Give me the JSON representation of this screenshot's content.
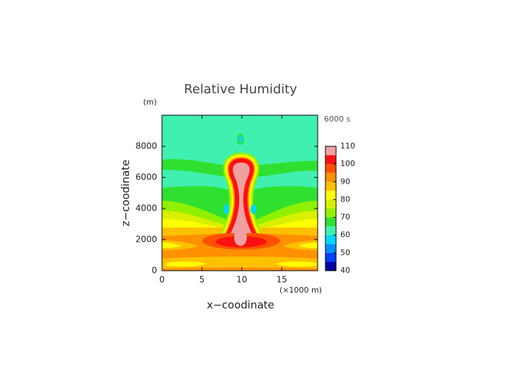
{
  "chart_data": {
    "type": "contour",
    "title": "Relative Humidity",
    "y_unit": "(m)",
    "time_label": "6000 s",
    "xlabel": "x−coodinate",
    "ylabel": "z−coodinate",
    "x_unit": "(×1000 m)",
    "xlim": [
      0,
      19.5
    ],
    "ylim": [
      0,
      10000
    ],
    "xticks": [
      0,
      5,
      10,
      15
    ],
    "yticks": [
      0,
      2000,
      4000,
      6000,
      8000
    ],
    "levels": [
      40,
      45,
      50,
      55,
      60,
      65,
      70,
      75,
      80,
      85,
      90,
      95,
      100,
      105,
      110
    ],
    "colors": [
      "#0000a0",
      "#0040ff",
      "#0090ff",
      "#00d8ff",
      "#40f0b0",
      "#30e030",
      "#90f000",
      "#d8f000",
      "#ffff00",
      "#ffc000",
      "#ff9000",
      "#ff5000",
      "#ff1010",
      "#f0a0a0"
    ],
    "colorbar_ticks": [
      40,
      50,
      60,
      70,
      80,
      90,
      100,
      110
    ]
  }
}
